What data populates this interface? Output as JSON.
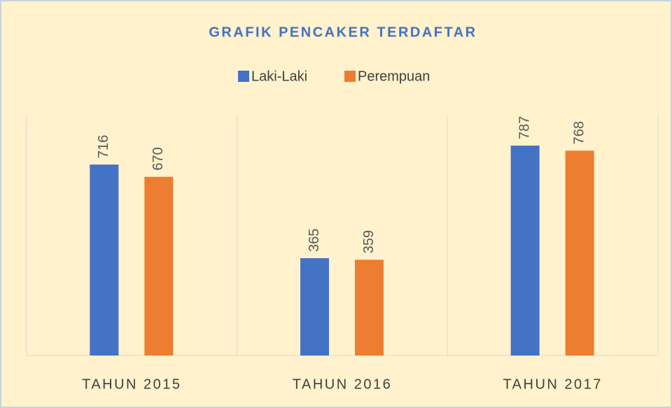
{
  "chart_data": {
    "type": "bar",
    "title": "GRAFIK PENCAKER TERDAFTAR",
    "categories": [
      "TAHUN 2015",
      "TAHUN 2016",
      "TAHUN 2017"
    ],
    "series": [
      {
        "name": "Laki-Laki",
        "color": "#4472c4",
        "values": [
          716,
          365,
          787
        ]
      },
      {
        "name": "Perempuan",
        "color": "#ed7d31",
        "values": [
          670,
          359,
          768
        ]
      }
    ],
    "ylim": [
      0,
      900
    ],
    "legend": "top"
  }
}
